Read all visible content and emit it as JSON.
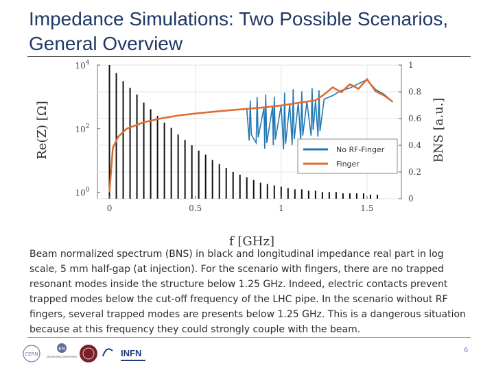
{
  "slide": {
    "title": "Impedance Simulations: Two Possible Scenarios, General Overview",
    "caption": "Beam normalized spectrum (BNS) in black and longitudinal impedance real part in log scale, 5 mm half-gap (at injection). For the scenario with fingers, there are no trapped resonant modes inside the structure below 1.25 GHz. Indeed, electric contacts prevent trapped modes below the cut-off frequency of the LHC pipe. In the scenario without RF fingers, several trapped modes are presents below 1.25 GHz. This is a dangerous situation because at this frequency they could strongly couple with the beam.",
    "page_number": "6",
    "logos": [
      {
        "name": "cern-logo",
        "text": "CERN"
      },
      {
        "name": "en-logo",
        "text": "EN"
      },
      {
        "name": "en-logo-subtitle",
        "text": "ENGINEERING DEPARTMENT"
      },
      {
        "name": "infn-logo",
        "text": "INFN"
      }
    ]
  },
  "chart_data": {
    "type": "line",
    "xlabel": "f [GHz]",
    "ylabel_left": "Re(Z) [Ω]",
    "ylabel_right": "BNS [a.u.]",
    "xlim": [
      -0.07,
      1.7
    ],
    "ylim_left_log10": [
      -0.2,
      4.0
    ],
    "ylim_right": [
      0,
      1
    ],
    "x_ticks": [
      {
        "value": 0,
        "label": "0"
      },
      {
        "value": 0.5,
        "label": "0.5"
      },
      {
        "value": 1,
        "label": "1"
      },
      {
        "value": 1.5,
        "label": "1.5"
      }
    ],
    "y_left_ticks": [
      {
        "exp": 0,
        "base": "10",
        "sup": "0"
      },
      {
        "exp": 2,
        "base": "10",
        "sup": "2"
      },
      {
        "exp": 4,
        "base": "10",
        "sup": "4"
      }
    ],
    "y_right_ticks": [
      {
        "value": 0,
        "label": "0"
      },
      {
        "value": 0.2,
        "label": "0.2"
      },
      {
        "value": 0.4,
        "label": "0.4"
      },
      {
        "value": 0.6,
        "label": "0.6"
      },
      {
        "value": 0.8,
        "label": "0.8"
      },
      {
        "value": 1,
        "label": "1"
      }
    ],
    "grid": true,
    "legend": "center-right",
    "bns_spectrum": {
      "name": "BNS",
      "color": "#111111",
      "line_spacing_ghz": 0.04,
      "x": [
        0.0,
        0.04,
        0.08,
        0.12,
        0.16,
        0.2,
        0.24,
        0.28,
        0.32,
        0.36,
        0.4,
        0.44,
        0.48,
        0.52,
        0.56,
        0.6,
        0.64,
        0.68,
        0.72,
        0.76,
        0.8,
        0.84,
        0.88,
        0.92,
        0.96,
        1.0,
        1.04,
        1.08,
        1.12,
        1.16,
        1.2,
        1.24,
        1.28,
        1.32,
        1.36,
        1.4,
        1.44,
        1.48,
        1.52,
        1.56
      ],
      "values": [
        1.0,
        0.94,
        0.88,
        0.83,
        0.78,
        0.72,
        0.67,
        0.62,
        0.57,
        0.53,
        0.48,
        0.44,
        0.4,
        0.36,
        0.33,
        0.29,
        0.26,
        0.23,
        0.2,
        0.18,
        0.16,
        0.14,
        0.12,
        0.11,
        0.1,
        0.09,
        0.08,
        0.07,
        0.07,
        0.06,
        0.06,
        0.05,
        0.05,
        0.05,
        0.04,
        0.04,
        0.04,
        0.04,
        0.03,
        0.03
      ]
    },
    "series": [
      {
        "name": "No RF-Finger",
        "color": "#1f77b4",
        "x": [
          0.0,
          0.02,
          0.05,
          0.1,
          0.2,
          0.3,
          0.4,
          0.5,
          0.6,
          0.7,
          0.8,
          0.9,
          0.95,
          1.0,
          1.05,
          1.1,
          1.15,
          1.2,
          1.25,
          1.3,
          1.35,
          1.4,
          1.45,
          1.5,
          1.55,
          1.6,
          1.65
        ],
        "values": [
          1,
          25,
          55,
          100,
          160,
          210,
          260,
          300,
          340,
          380,
          420,
          470,
          500,
          540,
          600,
          650,
          720,
          780,
          850,
          1100,
          1600,
          1900,
          2600,
          3500,
          1700,
          1200,
          700
        ]
      },
      {
        "name": "Finger",
        "color": "#e06c2e",
        "x": [
          0.0,
          0.02,
          0.05,
          0.1,
          0.2,
          0.3,
          0.4,
          0.5,
          0.6,
          0.7,
          0.8,
          0.9,
          1.0,
          1.1,
          1.2,
          1.25,
          1.3,
          1.35,
          1.4,
          1.45,
          1.5,
          1.55,
          1.6,
          1.65
        ],
        "values": [
          1,
          25,
          55,
          100,
          160,
          210,
          260,
          300,
          340,
          380,
          420,
          470,
          540,
          650,
          780,
          1200,
          2000,
          1400,
          2500,
          1800,
          3600,
          1500,
          1100,
          700
        ]
      }
    ],
    "resonances_no_rf_finger": {
      "x": [
        0.82,
        0.86,
        0.91,
        0.96,
        1.02,
        1.07,
        1.12,
        1.18,
        1.22
      ],
      "dip_factor": [
        0.1,
        0.08,
        0.05,
        0.06,
        0.04,
        0.05,
        0.06,
        0.08,
        0.07
      ],
      "peak_factor": [
        1.8,
        2.2,
        2.5,
        2.0,
        2.4,
        2.8,
        2.2,
        2.5,
        2.0
      ]
    }
  }
}
